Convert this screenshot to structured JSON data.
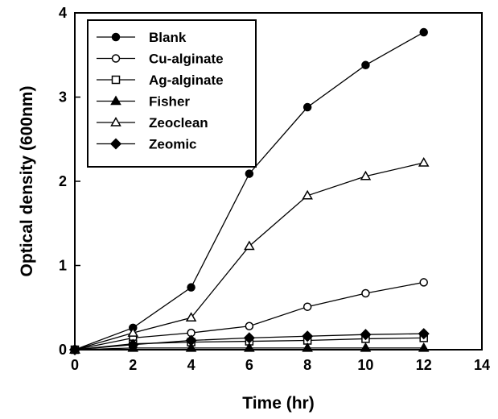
{
  "chart_data": {
    "type": "line",
    "xlabel": "Time (hr)",
    "ylabel": "Optical density (600nm)",
    "xlim": [
      0,
      14
    ],
    "ylim": [
      0,
      4
    ],
    "xticks": [
      0,
      2,
      4,
      6,
      8,
      10,
      12,
      14
    ],
    "yticks": [
      0,
      1,
      2,
      3,
      4
    ],
    "grid": false,
    "legend_position": "top-left",
    "x": [
      0,
      2,
      4,
      6,
      8,
      10,
      12
    ],
    "series": [
      {
        "name": "Blank",
        "marker": "filled-circle",
        "values": [
          0,
          0.26,
          0.74,
          2.09,
          2.88,
          3.38,
          3.77
        ]
      },
      {
        "name": "Cu-alginate",
        "marker": "open-circle",
        "values": [
          0,
          0.14,
          0.2,
          0.28,
          0.51,
          0.67,
          0.8
        ]
      },
      {
        "name": "Ag-alginate",
        "marker": "open-square",
        "values": [
          0,
          0.07,
          0.09,
          0.1,
          0.11,
          0.13,
          0.14
        ]
      },
      {
        "name": "Fisher",
        "marker": "filled-triangle",
        "values": [
          0,
          0.02,
          0.02,
          0.02,
          0.02,
          0.02,
          0.02
        ]
      },
      {
        "name": "Zeoclean",
        "marker": "open-triangle",
        "values": [
          0,
          0.2,
          0.38,
          1.23,
          1.83,
          2.06,
          2.22
        ]
      },
      {
        "name": "Zeomic",
        "marker": "filled-diamond",
        "values": [
          0,
          0.06,
          0.11,
          0.14,
          0.16,
          0.18,
          0.19
        ]
      }
    ]
  }
}
